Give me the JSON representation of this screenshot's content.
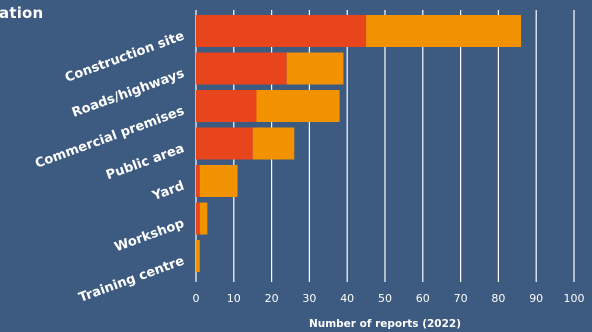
{
  "chart_data": {
    "type": "bar",
    "orientation": "horizontal",
    "stacked": true,
    "title": "ation",
    "xlabel": "Number of reports (2022)",
    "ylabel": "",
    "xlim": [
      0,
      100
    ],
    "x_ticks": [
      0,
      10,
      20,
      30,
      40,
      50,
      60,
      70,
      80,
      90,
      100
    ],
    "grid": "vertical",
    "categories": [
      "Construction site",
      "Roads/highways",
      "Commercial premises",
      "Public area",
      "Yard",
      "Workshop",
      "Training centre"
    ],
    "series": [
      {
        "values": [
          45,
          24,
          16,
          15,
          1,
          1,
          0
        ],
        "color": "#e8451c"
      },
      {
        "values": [
          41,
          15,
          22,
          11,
          10,
          2,
          1
        ],
        "color": "#f39200"
      }
    ]
  }
}
